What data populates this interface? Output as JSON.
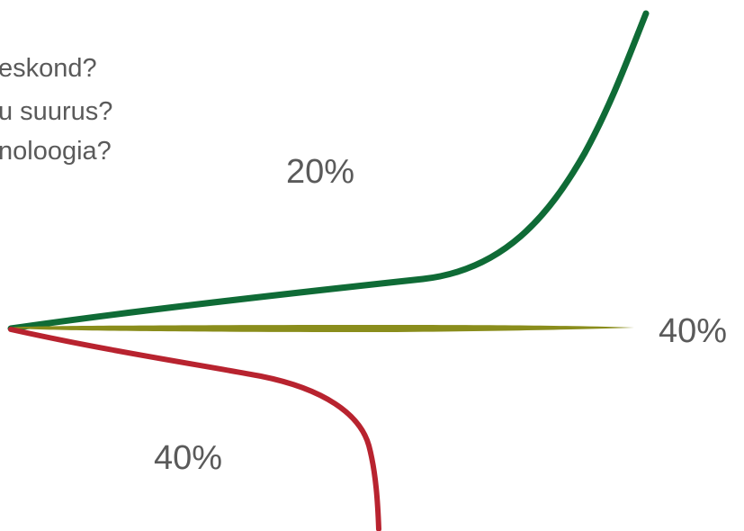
{
  "questions": [
    "eskond?",
    "u suurus?",
    "noloogia?"
  ],
  "paths": [
    {
      "label": "20%",
      "color": "#0f6b36"
    },
    {
      "label": "40%",
      "color": "#8a8d1c"
    },
    {
      "label": "40%",
      "color": "#b8232f"
    }
  ]
}
